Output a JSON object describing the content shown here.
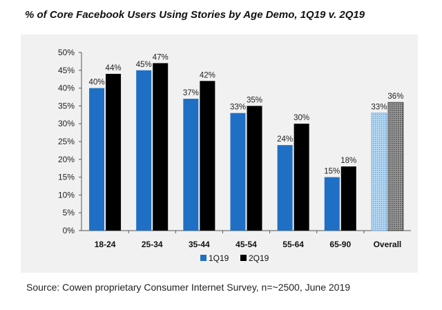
{
  "title": "% of Core Facebook Users Using Stories by Age Demo, 1Q19 v. 2Q19",
  "source": "Source: Cowen proprietary Consumer Internet Survey, n=~2500, June 2019",
  "colors": {
    "s1": "#1f6fc5",
    "s2": "#000000",
    "overall_s1": "#9fc8eb",
    "overall_s2": "#7a7a7a",
    "background": "#f1f1f1"
  },
  "chart_data": {
    "type": "bar",
    "title": "% of Core Facebook Users Using Stories by Age Demo, 1Q19 v. 2Q19",
    "categories": [
      "18-24",
      "25-34",
      "35-44",
      "45-54",
      "55-64",
      "65-90",
      "Overall"
    ],
    "series": [
      {
        "name": "1Q19",
        "values": [
          40,
          45,
          37,
          33,
          24,
          15,
          33
        ],
        "labels": [
          "40%",
          "45%",
          "37%",
          "33%",
          "24%",
          "15%",
          "33%"
        ]
      },
      {
        "name": "2Q19",
        "values": [
          44,
          47,
          42,
          35,
          30,
          18,
          36
        ],
        "labels": [
          "44%",
          "47%",
          "42%",
          "35%",
          "30%",
          "18%",
          "36%"
        ]
      }
    ],
    "ylim": [
      0,
      50
    ],
    "yticks": [
      0,
      5,
      10,
      15,
      20,
      25,
      30,
      35,
      40,
      45,
      50
    ],
    "ytick_labels": [
      "0%",
      "5%",
      "10%",
      "15%",
      "20%",
      "25%",
      "30%",
      "35%",
      "40%",
      "45%",
      "50%"
    ],
    "xlabel": "",
    "ylabel": "",
    "legend": "bottom",
    "grid": false
  }
}
